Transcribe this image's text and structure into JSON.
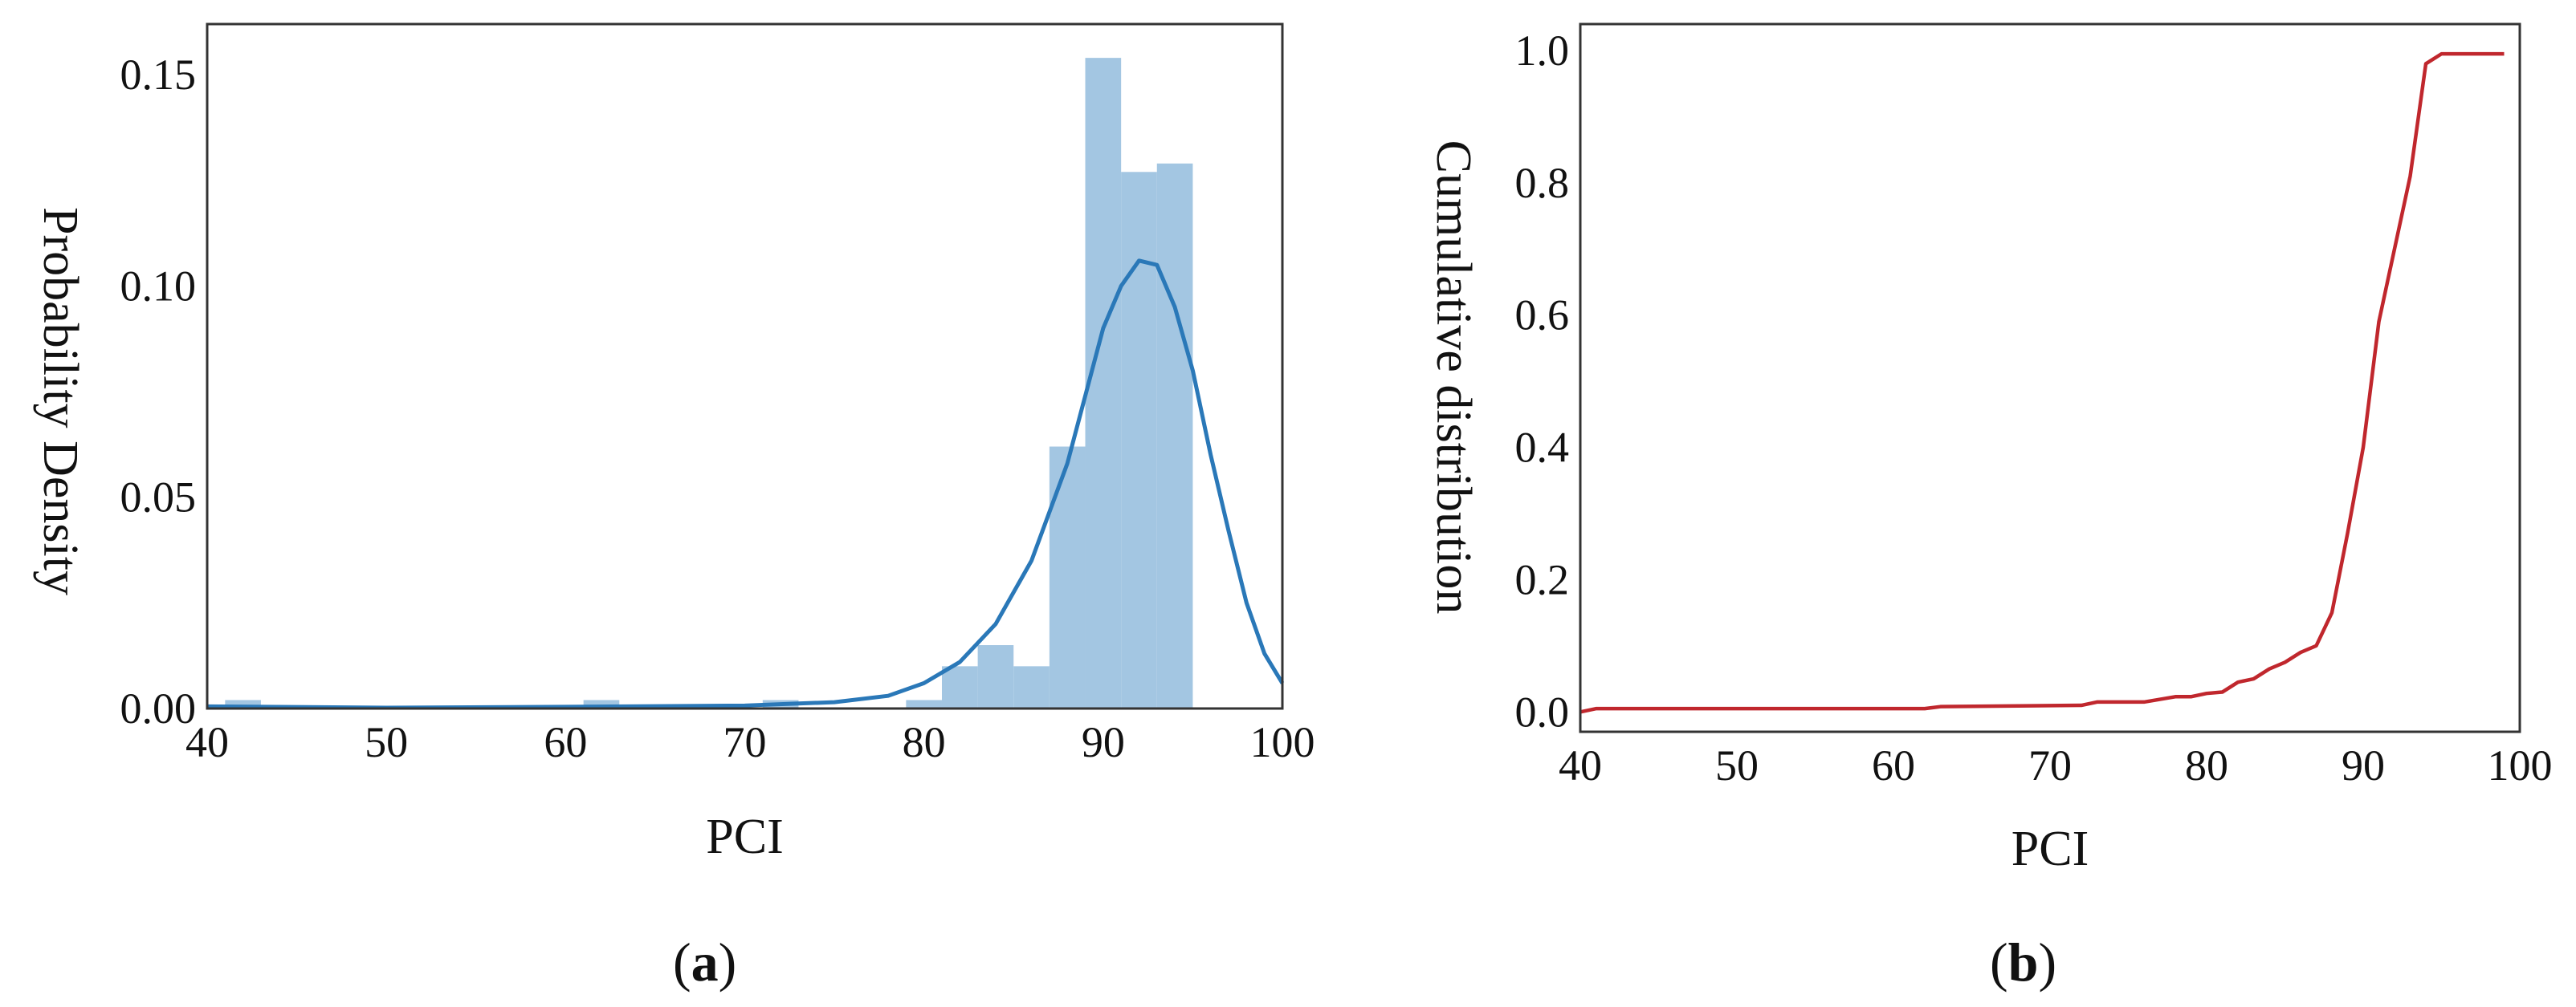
{
  "chart_data": [
    {
      "type": "bar",
      "panel_label": {
        "open": "(",
        "letter": "a",
        "close": ")"
      },
      "xlabel": "PCI",
      "ylabel": "Probability Density",
      "xlim": [
        40,
        100
      ],
      "ylim": [
        0,
        0.162
      ],
      "xticks": [
        40,
        50,
        60,
        70,
        80,
        90,
        100
      ],
      "xtick_labels": [
        "40",
        "50",
        "60",
        "70",
        "80",
        "90",
        "100"
      ],
      "yticks": [
        0,
        0.05,
        0.1,
        0.15
      ],
      "ytick_labels": [
        "0.00",
        "0.05",
        "0.10",
        "0.15"
      ],
      "grid": false,
      "histogram": {
        "bin_edges": [
          41,
          43,
          45,
          47,
          49,
          51,
          53,
          55,
          57,
          59,
          61,
          63,
          65,
          67,
          69,
          71,
          73,
          75,
          77,
          79,
          81,
          83,
          85,
          87,
          89,
          91,
          93,
          95
        ],
        "values": [
          0.002,
          0,
          0,
          0,
          0,
          0,
          0,
          0,
          0,
          0,
          0.002,
          0,
          0,
          0,
          0,
          0.002,
          0,
          0,
          0,
          0.002,
          0.01,
          0.015,
          0.01,
          0.062,
          0.154,
          0.127,
          0.129
        ]
      },
      "kde": {
        "x": [
          40,
          50,
          60,
          70,
          75,
          78,
          80,
          82,
          84,
          86,
          88,
          89,
          90,
          91,
          92,
          93,
          94,
          95,
          96,
          97,
          98,
          99,
          100
        ],
        "y": [
          0.0005,
          0.0002,
          0.0004,
          0.0007,
          0.0015,
          0.003,
          0.006,
          0.011,
          0.02,
          0.035,
          0.058,
          0.074,
          0.09,
          0.1,
          0.106,
          0.105,
          0.095,
          0.08,
          0.06,
          0.042,
          0.025,
          0.013,
          0.006
        ]
      },
      "colors": {
        "bars": "#a3c6e2",
        "kde": "#2a78b8"
      }
    },
    {
      "type": "line",
      "panel_label": {
        "open": "(",
        "letter": "b",
        "close": ")"
      },
      "xlabel": "PCI",
      "ylabel": "Cumulative distribution",
      "xlim": [
        40,
        100
      ],
      "ylim": [
        -0.03,
        1.04
      ],
      "xticks": [
        40,
        50,
        60,
        70,
        80,
        90,
        100
      ],
      "xtick_labels": [
        "40",
        "50",
        "60",
        "70",
        "80",
        "90",
        "100"
      ],
      "yticks": [
        0,
        0.2,
        0.4,
        0.6,
        0.8,
        1.0
      ],
      "ytick_labels": [
        "0.0",
        "0.2",
        "0.4",
        "0.6",
        "0.8",
        "1.0"
      ],
      "grid": false,
      "series": [
        {
          "x": [
            40,
            41,
            62,
            63,
            72,
            73,
            76,
            78,
            79,
            80,
            81,
            82,
            83,
            84,
            85,
            86,
            87,
            88,
            89,
            90,
            91,
            92,
            93,
            94,
            95,
            96,
            99
          ],
          "y": [
            0.0,
            0.005,
            0.005,
            0.008,
            0.01,
            0.015,
            0.015,
            0.023,
            0.023,
            0.028,
            0.03,
            0.045,
            0.05,
            0.065,
            0.075,
            0.09,
            0.1,
            0.15,
            0.27,
            0.4,
            0.59,
            0.7,
            0.81,
            0.98,
            0.995,
            0.995,
            0.995
          ]
        }
      ],
      "colors": {
        "line": "#c0272d"
      }
    }
  ]
}
